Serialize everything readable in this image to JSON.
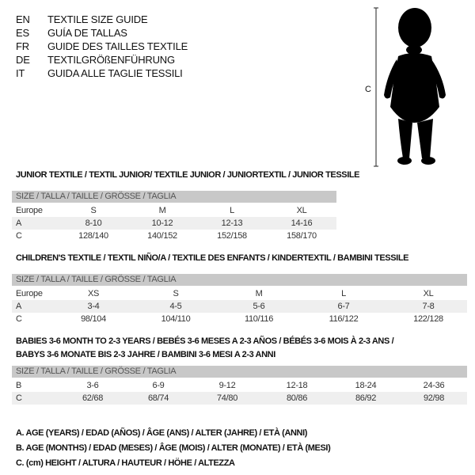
{
  "titles": [
    {
      "code": "EN",
      "text": "TEXTILE SIZE GUIDE"
    },
    {
      "code": "ES",
      "text": "GUÍA DE TALLAS"
    },
    {
      "code": "FR",
      "text": "GUIDE DES TAILLES TEXTILE"
    },
    {
      "code": "DE",
      "text": "TEXTILGRÖßENFÜHRUNG"
    },
    {
      "code": "IT",
      "text": "GUIDA ALLE TAGLIE TESSILI"
    }
  ],
  "figure": {
    "measure_label": "C",
    "icon": "child-silhouette-icon"
  },
  "size_header": "SIZE / TALLA / TAILLE / GRÖSSE / TAGLIA",
  "junior": {
    "title": "JUNIOR TEXTILE / TEXTIL JUNIOR/ TEXTILE JUNIOR / JUNIORTEXTIL / JUNIOR TESSILE",
    "rows": [
      {
        "label": "Europe",
        "values": [
          "S",
          "M",
          "L",
          "XL"
        ]
      },
      {
        "label": "A",
        "values": [
          "8-10",
          "10-12",
          "12-13",
          "14-16"
        ]
      },
      {
        "label": "C",
        "values": [
          "128/140",
          "140/152",
          "152/158",
          "158/170"
        ]
      }
    ]
  },
  "children": {
    "title": "CHILDREN'S TEXTILE / TEXTIL NIÑO/A / TEXTILE DES ENFANTS / KINDERTEXTIL / BAMBINI TESSILE",
    "rows": [
      {
        "label": "Europe",
        "values": [
          "XS",
          "S",
          "M",
          "L",
          "XL"
        ]
      },
      {
        "label": "A",
        "values": [
          "3-4",
          "4-5",
          "5-6",
          "6-7",
          "7-8"
        ]
      },
      {
        "label": "C",
        "values": [
          "98/104",
          "104/110",
          "110/116",
          "116/122",
          "122/128"
        ]
      }
    ]
  },
  "babies": {
    "title_line1": "BABIES 3-6 MONTH TO 2-3 YEARS / BEBÉS 3-6 MESES A 2-3 AÑOS / BÉBÉS 3-6 MOIS À 2-3 ANS /",
    "title_line2": "BABYS 3-6 MONATE BIS 2-3 JAHRE / BAMBINI 3-6 MESI A 2-3 ANNI",
    "rows": [
      {
        "label": "B",
        "values": [
          "3-6",
          "6-9",
          "9-12",
          "12-18",
          "18-24",
          "24-36"
        ]
      },
      {
        "label": "C",
        "values": [
          "62/68",
          "68/74",
          "74/80",
          "80/86",
          "86/92",
          "92/98"
        ]
      }
    ]
  },
  "legend": [
    "A. AGE (YEARS) / EDAD (AÑOS) / ÂGE (ANS) / ALTER (JAHRE) / ETÀ (ANNI)",
    "B. AGE (MONTHS) / EDAD (MESES) / ÂGE (MOIS) / ALTER (MONATE) / ETÀ (MESI)",
    "C. (cm) HEIGHT / ALTURA / HAUTEUR / HÖHE / ALTEZZA"
  ]
}
